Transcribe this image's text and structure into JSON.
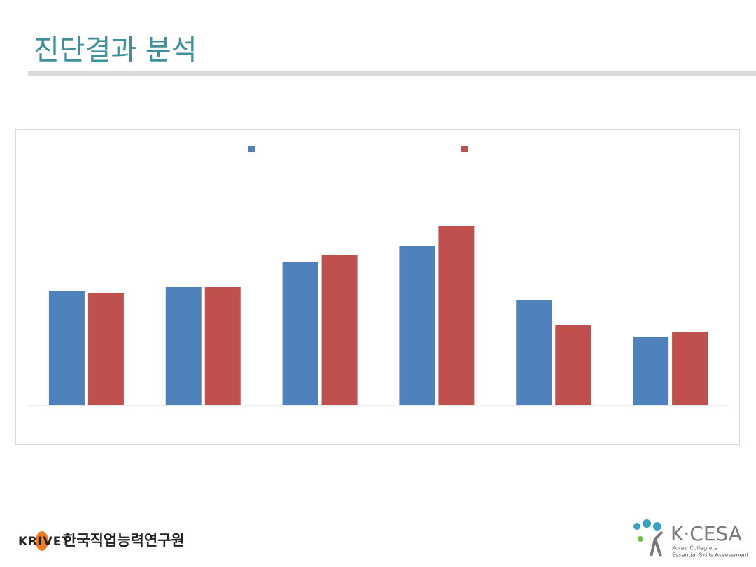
{
  "header": {
    "title": "진단결과 분석"
  },
  "chart_data": {
    "type": "bar",
    "categories": [
      null,
      null,
      null,
      null,
      null,
      null
    ],
    "series": [
      {
        "color": "#4f81bd",
        "values": [
          163,
          169,
          205,
          227,
          150,
          98
        ]
      },
      {
        "color": "#c0504d",
        "values": [
          161,
          169,
          215,
          256,
          114,
          105
        ]
      }
    ],
    "ylim": [
      0,
      350
    ]
  },
  "footer": {
    "left_logo": {
      "mark": "KRIVET",
      "name": "한국직업능력연구원"
    },
    "right_logo": {
      "mark": "K·CESA",
      "line1": "Korea Collegiate",
      "line2": "Essential Skills Assessment"
    }
  }
}
